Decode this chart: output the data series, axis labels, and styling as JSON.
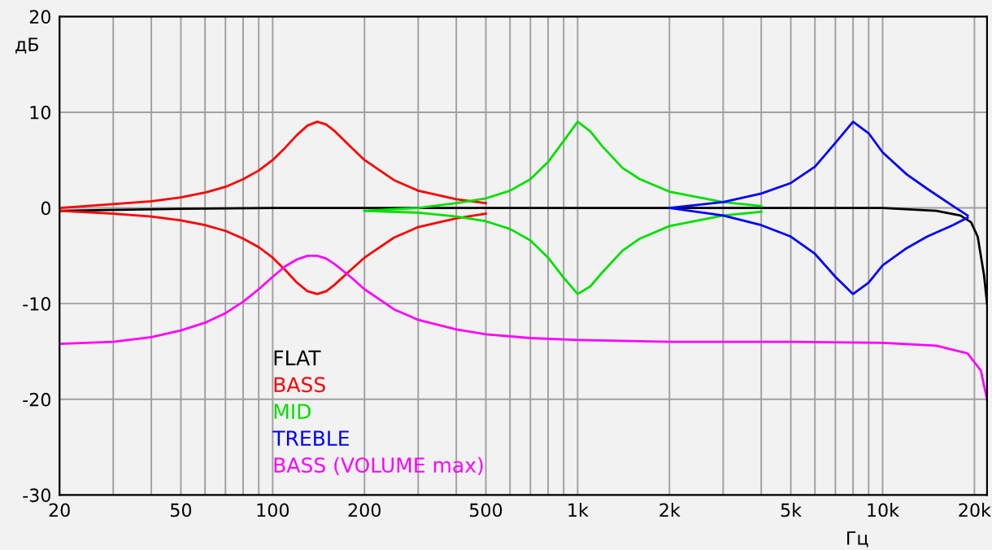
{
  "chart_data": {
    "type": "line",
    "xlabel": "Гц",
    "ylabel": "дБ",
    "log": "x",
    "grid": true,
    "legend": "bottom left",
    "marker": "none",
    "line_style": "solid",
    "xlim": [
      20,
      22000
    ],
    "ylim": [
      -30,
      20
    ],
    "xticks": [
      20,
      {
        "value": 30,
        "label": null
      },
      {
        "value": 40,
        "label": null
      },
      50,
      {
        "value": 60,
        "label": null
      },
      {
        "value": 70,
        "label": null
      },
      {
        "value": 80,
        "label": null
      },
      {
        "value": 90,
        "label": null
      },
      100,
      200,
      {
        "value": 300,
        "label": null
      },
      {
        "value": 400,
        "label": null
      },
      500,
      {
        "value": 600,
        "label": null
      },
      {
        "value": 700,
        "label": null
      },
      {
        "value": 800,
        "label": null
      },
      {
        "value": 900,
        "label": null
      },
      {
        "value": 1000,
        "label": "1k"
      },
      {
        "value": 2000,
        "label": "2k"
      },
      {
        "value": 3000,
        "label": null
      },
      {
        "value": 4000,
        "label": null
      },
      {
        "value": 5000,
        "label": "5k"
      },
      {
        "value": 6000,
        "label": null
      },
      {
        "value": 7000,
        "label": null
      },
      {
        "value": 8000,
        "label": null
      },
      {
        "value": 9000,
        "label": null
      },
      {
        "value": 10000,
        "label": "10k"
      },
      {
        "value": 20000,
        "label": "20k"
      }
    ],
    "yticks": [
      -30,
      -20,
      -10,
      0,
      10,
      20
    ],
    "series": [
      {
        "name": "FLAT",
        "color": "#000000",
        "x": [
          20,
          50,
          100,
          1000,
          10000,
          15000,
          18000,
          19500,
          20500,
          21500,
          22000
        ],
        "values": [
          -0.3,
          -0.1,
          0,
          0,
          0,
          -0.3,
          -0.8,
          -1.5,
          -3,
          -7,
          -10
        ]
      },
      {
        "name": "BASS",
        "color": "#ff0000",
        "x": [
          20,
          30,
          40,
          50,
          60,
          70,
          80,
          90,
          100,
          110,
          120,
          130,
          140,
          150,
          160,
          180,
          200,
          250,
          300,
          400,
          500
        ],
        "values": [
          0,
          0.4,
          0.7,
          1.1,
          1.6,
          2.2,
          3.0,
          3.9,
          5.0,
          6.3,
          7.6,
          8.6,
          9.0,
          8.7,
          8.0,
          6.4,
          5.0,
          2.9,
          1.8,
          0.9,
          0.5
        ]
      },
      {
        "color": "#ff0000",
        "x": [
          20,
          30,
          40,
          50,
          60,
          70,
          80,
          90,
          100,
          110,
          120,
          130,
          140,
          150,
          160,
          180,
          200,
          250,
          300,
          400,
          500
        ],
        "values": [
          -0.3,
          -0.6,
          -0.9,
          -1.3,
          -1.8,
          -2.4,
          -3.2,
          -4.1,
          -5.2,
          -6.5,
          -7.8,
          -8.7,
          -9.0,
          -8.7,
          -8.0,
          -6.5,
          -5.2,
          -3.1,
          -2.0,
          -1.1,
          -0.6
        ]
      },
      {
        "name": "MID",
        "color": "#00e000",
        "x": [
          200,
          300,
          400,
          500,
          600,
          700,
          800,
          900,
          1000,
          1100,
          1200,
          1400,
          1600,
          2000,
          3000,
          4000
        ],
        "values": [
          -0.3,
          0,
          0.5,
          1.0,
          1.8,
          3.0,
          4.8,
          7.0,
          9.0,
          8.0,
          6.5,
          4.2,
          3.0,
          1.7,
          0.6,
          0.2
        ]
      },
      {
        "color": "#00e000",
        "x": [
          200,
          300,
          400,
          500,
          600,
          700,
          800,
          900,
          1000,
          1100,
          1200,
          1400,
          1600,
          2000,
          3000,
          4000
        ],
        "values": [
          -0.3,
          -0.5,
          -0.9,
          -1.4,
          -2.2,
          -3.4,
          -5.2,
          -7.3,
          -9.0,
          -8.2,
          -6.8,
          -4.5,
          -3.2,
          -1.9,
          -0.8,
          -0.4
        ]
      },
      {
        "name": "TREBLE",
        "color": "#0000ff",
        "x": [
          2000,
          3000,
          4000,
          5000,
          6000,
          7000,
          8000,
          9000,
          10000,
          12000,
          14000,
          17000,
          19000
        ],
        "values": [
          0,
          0.6,
          1.5,
          2.6,
          4.3,
          6.8,
          9.0,
          7.8,
          5.8,
          3.5,
          2.0,
          0.2,
          -0.8
        ]
      },
      {
        "color": "#0000ff",
        "x": [
          2000,
          3000,
          4000,
          5000,
          6000,
          7000,
          8000,
          9000,
          10000,
          12000,
          14000,
          17000,
          19000
        ],
        "values": [
          0,
          -0.8,
          -1.8,
          -3.0,
          -4.8,
          -7.2,
          -9.0,
          -7.8,
          -6.0,
          -4.2,
          -3.0,
          -1.8,
          -1.0
        ]
      },
      {
        "name": "BASS (VOLUME max)",
        "color": "#ff00ff",
        "x": [
          20,
          30,
          40,
          50,
          60,
          70,
          80,
          90,
          100,
          110,
          120,
          130,
          140,
          150,
          160,
          180,
          200,
          250,
          300,
          400,
          500,
          700,
          1000,
          2000,
          5000,
          10000,
          15000,
          19000,
          21000,
          22000
        ],
        "values": [
          -14.2,
          -14.0,
          -13.5,
          -12.8,
          -12.0,
          -11.0,
          -9.8,
          -8.5,
          -7.2,
          -6.1,
          -5.4,
          -5.0,
          -5.0,
          -5.3,
          -5.9,
          -7.2,
          -8.5,
          -10.6,
          -11.7,
          -12.7,
          -13.2,
          -13.6,
          -13.8,
          -14.0,
          -14.0,
          -14.1,
          -14.4,
          -15.2,
          -17,
          -20
        ]
      }
    ]
  }
}
